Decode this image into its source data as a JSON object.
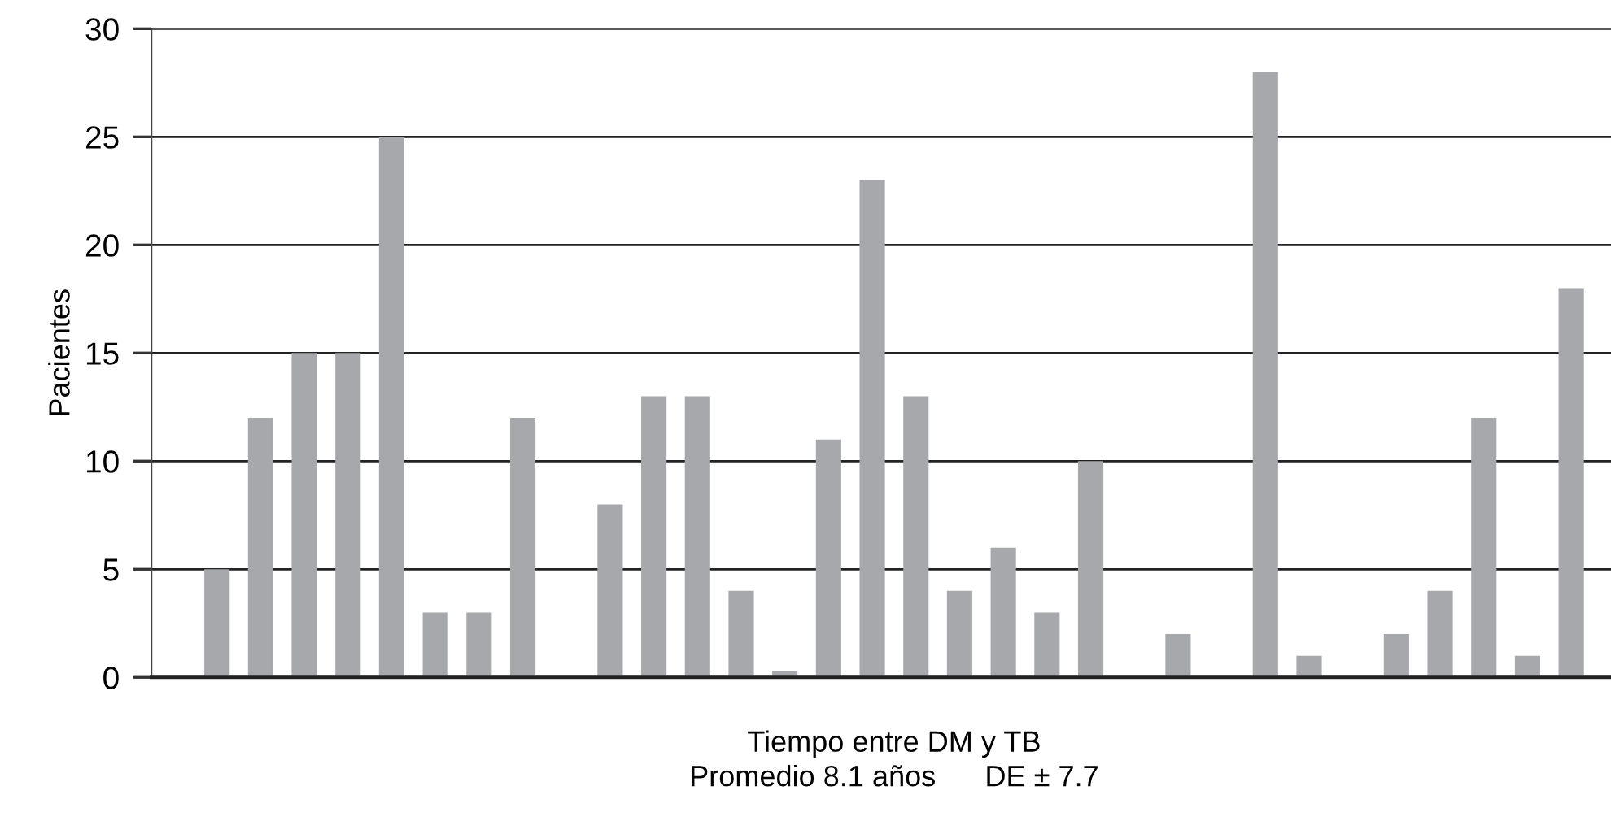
{
  "chart_data": {
    "type": "bar",
    "xlabel": "Tiempo entre DM y TB",
    "ylabel": "Pacientes",
    "annotations": [
      "Promedio 8.1 años      DE ± 7.7"
    ],
    "categories": [
      null,
      null,
      null,
      null,
      null,
      null,
      null,
      null,
      null,
      null,
      null,
      null,
      null,
      null,
      null,
      null,
      null,
      null,
      null,
      null,
      null,
      null,
      null,
      null,
      null,
      null,
      null,
      null,
      null,
      null,
      null,
      null,
      null,
      null
    ],
    "values": [
      0,
      5,
      12,
      15,
      15,
      25,
      3,
      3,
      12,
      0,
      8,
      13,
      13,
      4,
      0.3,
      11,
      23,
      13,
      4,
      6,
      3,
      10,
      0,
      2,
      0,
      28,
      1,
      0,
      2,
      4,
      12,
      1,
      18,
      0
    ],
    "color": "#a7a8ac",
    "ylim": [
      0,
      30
    ],
    "yticks": [
      0,
      5,
      10,
      15,
      20,
      25,
      30
    ],
    "grid": "y",
    "legend": false
  }
}
